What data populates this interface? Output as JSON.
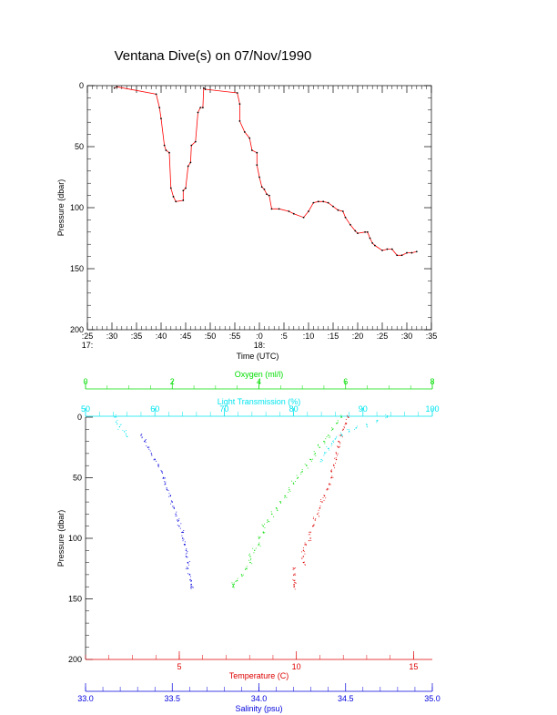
{
  "page_title": "Ventana Dive(s) on 07/Nov/1990",
  "chart_data": [
    {
      "type": "line",
      "title": "",
      "xlabel": "Time (UTC)",
      "ylabel": "Pressure (dbar)",
      "y_inverted": true,
      "ylim": [
        0,
        200
      ],
      "yticks": [
        {
          "value": 0,
          "label": "0"
        },
        {
          "value": 50,
          "label": "50"
        },
        {
          "value": 100,
          "label": "100"
        },
        {
          "value": 150,
          "label": "150"
        },
        {
          "value": 200,
          "label": "200"
        }
      ],
      "xlim": [
        "17:25",
        "18:35"
      ],
      "xticks": [
        {
          "value": "17:25",
          "label": ":25",
          "sublabel": "17:"
        },
        {
          "value": "17:30",
          "label": ":30"
        },
        {
          "value": "17:35",
          "label": ":35"
        },
        {
          "value": "17:40",
          "label": ":40"
        },
        {
          "value": "17:45",
          "label": ":45"
        },
        {
          "value": "17:50",
          "label": ":50"
        },
        {
          "value": "17:55",
          "label": ":55"
        },
        {
          "value": "18:00",
          "label": ":0",
          "sublabel": "18:"
        },
        {
          "value": "18:05",
          "label": ":5"
        },
        {
          "value": "18:10",
          "label": ":10"
        },
        {
          "value": "18:15",
          "label": ":15"
        },
        {
          "value": "18:20",
          "label": ":20"
        },
        {
          "value": "18:25",
          "label": ":25"
        },
        {
          "value": "18:30",
          "label": ":30"
        },
        {
          "value": "18:35",
          "label": ":35"
        }
      ],
      "grid": false,
      "line_color": "#ff0000",
      "series": [
        {
          "x": [
            "17:30:30",
            "17:31:00",
            "17:39:00",
            "17:39:40",
            "17:40:00",
            "17:40:40",
            "17:41:00",
            "17:41:40",
            "17:42:00",
            "17:42:30",
            "17:43:00",
            "17:44:30",
            "17:44:30",
            "17:45:00",
            "17:45:30",
            "17:46:00",
            "17:46:10",
            "17:47:00",
            "17:47:30",
            "17:48:00",
            "17:48:30",
            "17:48:40",
            "17:49:00",
            "17:55:30",
            "17:56:00",
            "17:56:00",
            "17:57:00",
            "17:58:00",
            "17:58:30",
            "17:59:30",
            "17:59:30",
            "18:00:00",
            "18:00:30",
            "18:01:00",
            "18:01:30",
            "18:02:00",
            "18:02:30",
            "18:04:00",
            "18:06:00",
            "18:07:00",
            "18:09:00",
            "18:10:00",
            "18:11:00",
            "18:12:00",
            "18:13:00",
            "18:14:00",
            "18:15:00",
            "18:16:00",
            "18:17:00",
            "18:17:30",
            "18:18:30",
            "18:19:30",
            "18:20:00",
            "18:21:30",
            "18:22:00",
            "18:22:30",
            "18:23:00",
            "18:23:30",
            "18:25:00",
            "18:26:00",
            "18:27:00",
            "18:28:00",
            "18:29:00",
            "18:30:00",
            "18:31:00",
            "18:32:00"
          ],
          "y": [
            2,
            1,
            7,
            18,
            27,
            49,
            53,
            55,
            84,
            91,
            95,
            94,
            86,
            84,
            66,
            63,
            49,
            46,
            22,
            18,
            18,
            2,
            3,
            6,
            15,
            29,
            38,
            43,
            53,
            55,
            65,
            75,
            83,
            85,
            89,
            90,
            101,
            101,
            103,
            105,
            108,
            103,
            96,
            95,
            95,
            96,
            99,
            102,
            103,
            108,
            114,
            119,
            121,
            120,
            120,
            125,
            129,
            131,
            135,
            134,
            134,
            139,
            139,
            137,
            137,
            136
          ]
        }
      ]
    },
    {
      "type": "scatter",
      "title": "",
      "ylabel": "Pressure (dbar)",
      "y_inverted": true,
      "ylim": [
        0,
        200
      ],
      "yticks": [
        {
          "value": 0,
          "label": "0"
        },
        {
          "value": 50,
          "label": "50"
        },
        {
          "value": 100,
          "label": "100"
        },
        {
          "value": 150,
          "label": "150"
        },
        {
          "value": 200,
          "label": "200"
        }
      ],
      "grid": false,
      "axes": [
        {
          "key": "oxygen",
          "label": "Oxygen (ml/l)",
          "position": "top",
          "color": "#00dd00",
          "range": [
            0,
            8
          ],
          "ticks": [
            {
              "value": 0,
              "label": "0"
            },
            {
              "value": 2,
              "label": "2"
            },
            {
              "value": 4,
              "label": "4"
            },
            {
              "value": 6,
              "label": "6"
            },
            {
              "value": 8,
              "label": "8"
            }
          ]
        },
        {
          "key": "light",
          "label": "Light Transmission (%)",
          "position": "top",
          "color": "#00e5ee",
          "range": [
            50,
            100
          ],
          "ticks": [
            {
              "value": 50,
              "label": "50"
            },
            {
              "value": 60,
              "label": "60"
            },
            {
              "value": 70,
              "label": "70"
            },
            {
              "value": 80,
              "label": "80"
            },
            {
              "value": 90,
              "label": "90"
            },
            {
              "value": 100,
              "label": "100"
            }
          ]
        },
        {
          "key": "temperature",
          "label": "Temperature (C)",
          "position": "bottom",
          "color": "#dd0000",
          "range": [
            1,
            15.8
          ],
          "ticks": [
            {
              "value": 5,
              "label": "5"
            },
            {
              "value": 10,
              "label": "10"
            },
            {
              "value": 15,
              "label": "15"
            }
          ]
        },
        {
          "key": "salinity",
          "label": "Salinity (psu)",
          "position": "bottom",
          "color": "#0000dd",
          "range": [
            33.0,
            35.0
          ],
          "ticks": [
            {
              "value": 33.0,
              "label": "33.0"
            },
            {
              "value": 33.5,
              "label": "33.5"
            },
            {
              "value": 34.0,
              "label": "34.0"
            },
            {
              "value": 34.5,
              "label": "34.5"
            },
            {
              "value": 35.0,
              "label": "35.0"
            }
          ]
        }
      ],
      "series": [
        {
          "axis": "temperature",
          "color": "#dd0000",
          "points": [
            [
              0,
              12.2
            ],
            [
              5,
              12.1
            ],
            [
              10,
              12.0
            ],
            [
              15,
              11.9
            ],
            [
              20,
              11.8
            ],
            [
              25,
              11.8
            ],
            [
              30,
              11.7
            ],
            [
              35,
              11.7
            ],
            [
              40,
              11.6
            ],
            [
              45,
              11.5
            ],
            [
              50,
              11.5
            ],
            [
              55,
              11.4
            ],
            [
              60,
              11.3
            ],
            [
              65,
              11.2
            ],
            [
              70,
              11.1
            ],
            [
              75,
              11.0
            ],
            [
              80,
              10.9
            ],
            [
              85,
              10.8
            ],
            [
              90,
              10.7
            ],
            [
              95,
              10.6
            ],
            [
              100,
              10.6
            ],
            [
              105,
              10.4
            ],
            [
              110,
              10.3
            ],
            [
              115,
              10.3
            ],
            [
              120,
              10.3
            ],
            [
              125,
              9.9
            ],
            [
              130,
              9.9
            ],
            [
              135,
              9.9
            ],
            [
              138,
              9.9
            ],
            [
              140,
              9.9
            ]
          ]
        },
        {
          "axis": "oxygen",
          "color": "#00dd00",
          "points": [
            [
              0,
              5.9
            ],
            [
              5,
              5.8
            ],
            [
              10,
              5.7
            ],
            [
              15,
              5.6
            ],
            [
              20,
              5.5
            ],
            [
              25,
              5.4
            ],
            [
              30,
              5.3
            ],
            [
              35,
              5.2
            ],
            [
              40,
              5.1
            ],
            [
              45,
              5.0
            ],
            [
              50,
              4.9
            ],
            [
              55,
              4.8
            ],
            [
              60,
              4.7
            ],
            [
              65,
              4.6
            ],
            [
              70,
              4.5
            ],
            [
              75,
              4.4
            ],
            [
              80,
              4.3
            ],
            [
              85,
              4.2
            ],
            [
              90,
              4.1
            ],
            [
              95,
              4.1
            ],
            [
              100,
              4.0
            ],
            [
              105,
              4.0
            ],
            [
              110,
              3.9
            ],
            [
              115,
              3.8
            ],
            [
              120,
              3.8
            ],
            [
              125,
              3.7
            ],
            [
              130,
              3.6
            ],
            [
              135,
              3.5
            ],
            [
              138,
              3.4
            ],
            [
              140,
              3.4
            ]
          ]
        },
        {
          "axis": "light",
          "color": "#00e5ee",
          "points": [
            [
              0,
              54.2
            ],
            [
              4,
              54.4
            ],
            [
              8,
              54.9
            ],
            [
              12,
              55.6
            ],
            [
              16,
              56.0
            ],
            [
              0,
              93.5
            ],
            [
              3,
              92.0
            ],
            [
              6,
              90.5
            ],
            [
              9,
              89.0
            ],
            [
              12,
              88.0
            ],
            [
              15,
              87.0
            ],
            [
              18,
              86.0
            ],
            [
              22,
              85.5
            ],
            [
              26,
              85.0
            ],
            [
              30,
              84.5
            ],
            [
              35,
              84.0
            ]
          ]
        },
        {
          "axis": "salinity",
          "color": "#0000dd",
          "points": [
            [
              15,
              33.32
            ],
            [
              20,
              33.34
            ],
            [
              25,
              33.36
            ],
            [
              30,
              33.38
            ],
            [
              35,
              33.4
            ],
            [
              40,
              33.42
            ],
            [
              45,
              33.44
            ],
            [
              50,
              33.45
            ],
            [
              55,
              33.46
            ],
            [
              60,
              33.47
            ],
            [
              65,
              33.49
            ],
            [
              70,
              33.5
            ],
            [
              75,
              33.51
            ],
            [
              80,
              33.52
            ],
            [
              85,
              33.53
            ],
            [
              90,
              33.54
            ],
            [
              95,
              33.56
            ],
            [
              100,
              33.56
            ],
            [
              105,
              33.57
            ],
            [
              110,
              33.58
            ],
            [
              115,
              33.58
            ],
            [
              120,
              33.59
            ],
            [
              125,
              33.59
            ],
            [
              130,
              33.6
            ],
            [
              135,
              33.61
            ],
            [
              138,
              33.61
            ],
            [
              140,
              33.61
            ]
          ]
        }
      ]
    }
  ]
}
